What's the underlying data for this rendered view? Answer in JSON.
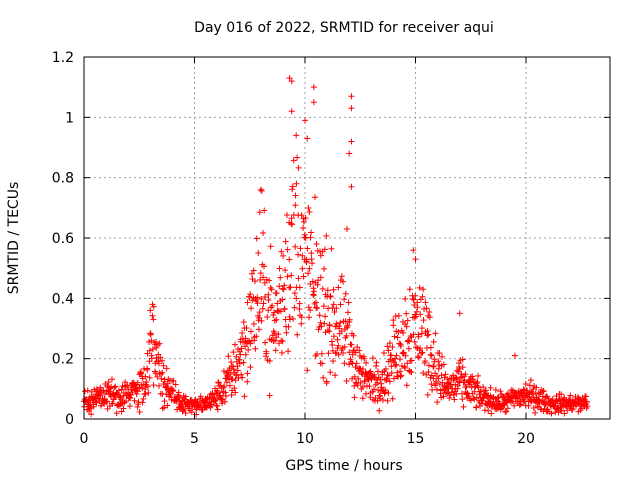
{
  "chart_data": {
    "type": "scatter",
    "title": "Day 016 of 2022, SRMTID for receiver aqui",
    "xlabel": "GPS time / hours",
    "ylabel": "SRMTID / TECUs",
    "xlim": [
      0,
      23.8
    ],
    "ylim": [
      0,
      1.2
    ],
    "xticks": [
      0,
      5,
      10,
      15,
      20
    ],
    "xtick_labels": [
      "0",
      "5",
      "10",
      "15",
      "20"
    ],
    "yticks": [
      0,
      0.2,
      0.4,
      0.6,
      0.8,
      1.0,
      1.2
    ],
    "ytick_labels": [
      "0",
      "0.2",
      "0.4",
      "0.6",
      "0.8",
      "1",
      "1.2"
    ],
    "grid": true,
    "marker": "+",
    "color": "#ff0000",
    "envelope": {
      "x": [
        0,
        0.5,
        1,
        1.5,
        2,
        2.5,
        2.8,
        3.0,
        3.2,
        3.5,
        4.0,
        4.5,
        5.0,
        5.5,
        6.0,
        6.5,
        7.0,
        7.5,
        7.8,
        8.0,
        8.3,
        8.6,
        9.0,
        9.3,
        9.6,
        10.0,
        10.3,
        10.6,
        11.0,
        11.5,
        12.0,
        12.5,
        13.0,
        13.5,
        14.0,
        14.5,
        15.0,
        15.3,
        15.6,
        16.0,
        16.5,
        17.0,
        17.5,
        18.0,
        18.5,
        19.0,
        19.5,
        20.0,
        20.5,
        21.0,
        21.5,
        22.0,
        22.5,
        22.8
      ],
      "y": [
        0.06,
        0.07,
        0.08,
        0.07,
        0.08,
        0.1,
        0.15,
        0.22,
        0.25,
        0.15,
        0.08,
        0.05,
        0.04,
        0.05,
        0.07,
        0.12,
        0.2,
        0.3,
        0.4,
        0.45,
        0.38,
        0.3,
        0.4,
        0.55,
        0.6,
        0.5,
        0.45,
        0.4,
        0.35,
        0.3,
        0.25,
        0.15,
        0.12,
        0.13,
        0.2,
        0.28,
        0.32,
        0.3,
        0.25,
        0.15,
        0.1,
        0.12,
        0.1,
        0.07,
        0.06,
        0.05,
        0.07,
        0.08,
        0.07,
        0.05,
        0.05,
        0.05,
        0.05,
        0.06
      ]
    },
    "spikes": [
      {
        "x": 3.0,
        "y": 0.36
      },
      {
        "x": 3.1,
        "y": 0.38
      },
      {
        "x": 8.0,
        "y": 0.76
      },
      {
        "x": 9.3,
        "y": 1.13
      },
      {
        "x": 9.4,
        "y": 1.12
      },
      {
        "x": 9.4,
        "y": 1.02
      },
      {
        "x": 9.6,
        "y": 0.94
      },
      {
        "x": 10.0,
        "y": 0.99
      },
      {
        "x": 10.1,
        "y": 0.93
      },
      {
        "x": 10.4,
        "y": 1.1
      },
      {
        "x": 10.4,
        "y": 1.05
      },
      {
        "x": 12.1,
        "y": 1.07
      },
      {
        "x": 12.1,
        "y": 1.03
      },
      {
        "x": 12.1,
        "y": 0.92
      },
      {
        "x": 12.0,
        "y": 0.88
      },
      {
        "x": 12.1,
        "y": 0.77
      },
      {
        "x": 11.9,
        "y": 0.63
      },
      {
        "x": 14.9,
        "y": 0.56
      },
      {
        "x": 15.0,
        "y": 0.53
      },
      {
        "x": 17.0,
        "y": 0.35
      },
      {
        "x": 19.5,
        "y": 0.21
      }
    ]
  }
}
